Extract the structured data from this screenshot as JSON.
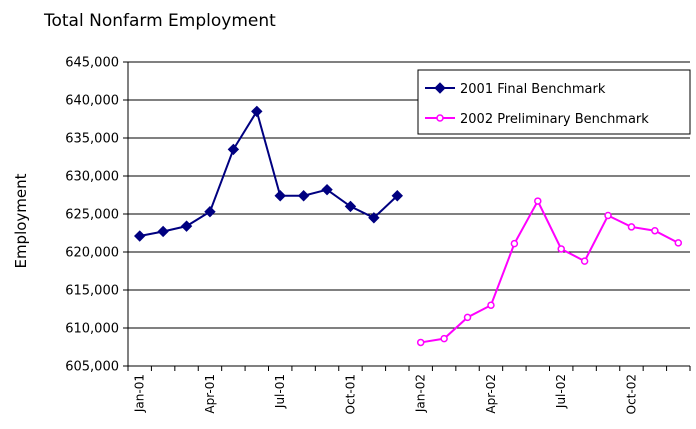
{
  "chart_data": {
    "type": "line",
    "title": "Total Nonfarm Employment",
    "xlabel": "",
    "ylabel": "Employment",
    "ylim": [
      605000,
      645000
    ],
    "yticks": [
      605000,
      610000,
      615000,
      620000,
      625000,
      630000,
      635000,
      640000,
      645000
    ],
    "ytick_labels": [
      "605,000",
      "610,000",
      "615,000",
      "620,000",
      "625,000",
      "630,000",
      "635,000",
      "640,000",
      "645,000"
    ],
    "grid": "horizontal",
    "legend_position": "top-right",
    "categories": [
      "Jan-01",
      "Feb-01",
      "Mar-01",
      "Apr-01",
      "May-01",
      "Jun-01",
      "Jul-01",
      "Aug-01",
      "Sep-01",
      "Oct-01",
      "Nov-01",
      "Dec-01",
      "Jan-02",
      "Feb-02",
      "Mar-02",
      "Apr-02",
      "May-02",
      "Jun-02",
      "Jul-02",
      "Aug-02",
      "Sep-02",
      "Oct-02",
      "Nov-02",
      "Dec-02"
    ],
    "xtick_labels": [
      "Jan-01",
      "Apr-01",
      "Jul-01",
      "Oct-01",
      "Jan-02",
      "Apr-02",
      "Jul-02",
      "Oct-02"
    ],
    "xtick_indices": [
      0,
      3,
      6,
      9,
      12,
      15,
      18,
      21
    ],
    "series": [
      {
        "name": "2001 Final Benchmark",
        "color": "#000080",
        "marker": "diamond",
        "values": [
          622100,
          622700,
          623400,
          625300,
          633500,
          638500,
          627400,
          627400,
          628200,
          626000,
          624500,
          627400,
          null,
          null,
          null,
          null,
          null,
          null,
          null,
          null,
          null,
          null,
          null,
          null
        ]
      },
      {
        "name": "2002 Preliminary Benchmark",
        "color": "#ff00ff",
        "marker": "circle-open",
        "values": [
          null,
          null,
          null,
          null,
          null,
          null,
          null,
          null,
          null,
          null,
          null,
          null,
          608100,
          608600,
          611400,
          613000,
          621100,
          626700,
          620400,
          618800,
          624800,
          623300,
          622800,
          621200
        ]
      }
    ]
  }
}
